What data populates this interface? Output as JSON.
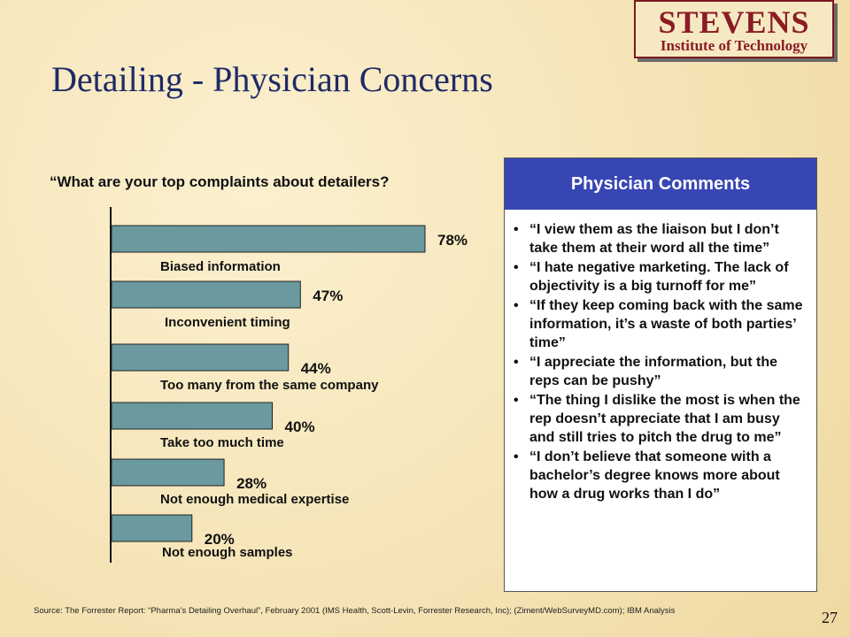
{
  "logo": {
    "line1": "STEVENS",
    "line2": "Institute of Technology"
  },
  "title": "Detailing - Physician Concerns",
  "question": "“What are your top complaints about detailers?",
  "chart_data": {
    "type": "bar",
    "orientation": "horizontal",
    "categories": [
      "Biased information",
      "Inconvenient timing",
      "Too many from the same company",
      "Take too much time",
      "Not enough medical expertise",
      "Not enough samples"
    ],
    "values": [
      78,
      47,
      44,
      40,
      28,
      20
    ],
    "value_labels": [
      "78%",
      "47%",
      "44%",
      "40%",
      "28%",
      "20%"
    ],
    "xlim": [
      0,
      100
    ],
    "bar_color": "#6a9aa0"
  },
  "comments": {
    "header": "Physician Comments",
    "bullet": "•",
    "items": [
      "“I view them as the liaison but I don’t take them at their word all the time”",
      "“I hate negative marketing. The lack of objectivity is a big turnoff for me”",
      "“If they keep coming back with the same information, it’s a waste of both parties’ time”",
      "“I appreciate the information, but the reps can be pushy”",
      "“The thing I dislike the most is when the rep doesn’t appreciate that I am busy and still tries to pitch the drug to me”",
      "“I don’t believe that someone with a bachelor’s degree knows more about how a drug works than I do”"
    ]
  },
  "source": "Source: The Forrester Report: “Pharma’s Detailing Overhaul”, February 2001 (IMS Health, Scott-Levin, Forrester Research, Inc); (Ziment/WebSurveyMD.com); IBM Analysis",
  "page_number": "27"
}
